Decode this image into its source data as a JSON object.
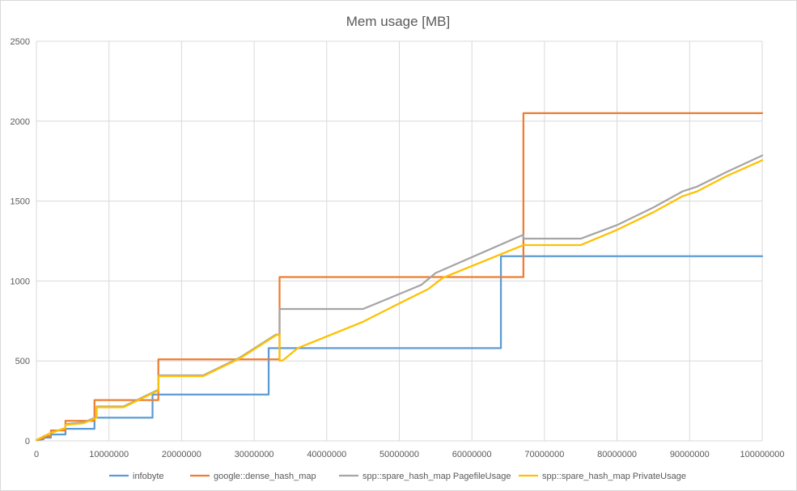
{
  "chart_data": {
    "type": "line",
    "title": "Mem usage [MB]",
    "xlabel": "",
    "ylabel": "",
    "xlim": [
      0,
      100000000
    ],
    "ylim": [
      0,
      2500
    ],
    "x_ticks": [
      0,
      10000000,
      20000000,
      30000000,
      40000000,
      50000000,
      60000000,
      70000000,
      80000000,
      90000000,
      100000000
    ],
    "x_tick_labels": [
      "0",
      "10000000",
      "20000000",
      "30000000",
      "40000000",
      "50000000",
      "60000000",
      "70000000",
      "80000000",
      "90000000",
      "100000000"
    ],
    "y_ticks": [
      0,
      500,
      1000,
      1500,
      2000,
      2500
    ],
    "y_tick_labels": [
      "0",
      "500",
      "1000",
      "1500",
      "2000",
      "2500"
    ],
    "grid": true,
    "legend_position": "bottom",
    "series": [
      {
        "name": "infobyte",
        "color": "#5b9bd5",
        "points": [
          [
            0,
            5
          ],
          [
            1000000,
            10
          ],
          [
            1000000,
            20
          ],
          [
            2000000,
            20
          ],
          [
            2000000,
            40
          ],
          [
            4000000,
            40
          ],
          [
            4000000,
            75
          ],
          [
            8000000,
            75
          ],
          [
            8000000,
            145
          ],
          [
            16000000,
            145
          ],
          [
            16000000,
            290
          ],
          [
            32000000,
            290
          ],
          [
            32000000,
            580
          ],
          [
            64000000,
            580
          ],
          [
            64000000,
            1155
          ],
          [
            100000000,
            1155
          ]
        ]
      },
      {
        "name": "google::dense_hash_map",
        "color": "#ed7d31",
        "points": [
          [
            0,
            5
          ],
          [
            1000000,
            15
          ],
          [
            1000000,
            30
          ],
          [
            2000000,
            30
          ],
          [
            2000000,
            65
          ],
          [
            4000000,
            65
          ],
          [
            4000000,
            125
          ],
          [
            8000000,
            125
          ],
          [
            8000000,
            255
          ],
          [
            16800000,
            255
          ],
          [
            16800000,
            510
          ],
          [
            33500000,
            510
          ],
          [
            33500000,
            1025
          ],
          [
            67100000,
            1025
          ],
          [
            67100000,
            2050
          ],
          [
            100000000,
            2050
          ]
        ]
      },
      {
        "name": "spp::spare_hash_map PagefileUsage",
        "color": "#a5a5a5",
        "points": [
          [
            0,
            5
          ],
          [
            2000000,
            50
          ],
          [
            4000000,
            80
          ],
          [
            4000000,
            105
          ],
          [
            6500000,
            115
          ],
          [
            8300000,
            150
          ],
          [
            8300000,
            215
          ],
          [
            12000000,
            215
          ],
          [
            16800000,
            320
          ],
          [
            16800000,
            410
          ],
          [
            23000000,
            410
          ],
          [
            28000000,
            520
          ],
          [
            33000000,
            665
          ],
          [
            33500000,
            665
          ],
          [
            33500000,
            825
          ],
          [
            45000000,
            825
          ],
          [
            53000000,
            975
          ],
          [
            55000000,
            1050
          ],
          [
            67100000,
            1290
          ],
          [
            67100000,
            1265
          ],
          [
            75000000,
            1265
          ],
          [
            80000000,
            1350
          ],
          [
            85000000,
            1460
          ],
          [
            89000000,
            1560
          ],
          [
            91000000,
            1590
          ],
          [
            95000000,
            1680
          ],
          [
            100000000,
            1785
          ]
        ]
      },
      {
        "name": "spp::spare_hash_map PrivateUsage",
        "color": "#ffc000",
        "points": [
          [
            0,
            5
          ],
          [
            2000000,
            50
          ],
          [
            4000000,
            80
          ],
          [
            4000000,
            100
          ],
          [
            6500000,
            110
          ],
          [
            8300000,
            145
          ],
          [
            8300000,
            210
          ],
          [
            12000000,
            210
          ],
          [
            16800000,
            315
          ],
          [
            16800000,
            405
          ],
          [
            23000000,
            405
          ],
          [
            28000000,
            515
          ],
          [
            33000000,
            660
          ],
          [
            33500000,
            665
          ],
          [
            33500000,
            500
          ],
          [
            34000000,
            505
          ],
          [
            36000000,
            580
          ],
          [
            45000000,
            745
          ],
          [
            50000000,
            860
          ],
          [
            54000000,
            950
          ],
          [
            56000000,
            1020
          ],
          [
            67100000,
            1225
          ],
          [
            75000000,
            1225
          ],
          [
            80000000,
            1320
          ],
          [
            85000000,
            1430
          ],
          [
            89000000,
            1530
          ],
          [
            91000000,
            1560
          ],
          [
            95000000,
            1655
          ],
          [
            100000000,
            1755
          ]
        ]
      }
    ]
  }
}
